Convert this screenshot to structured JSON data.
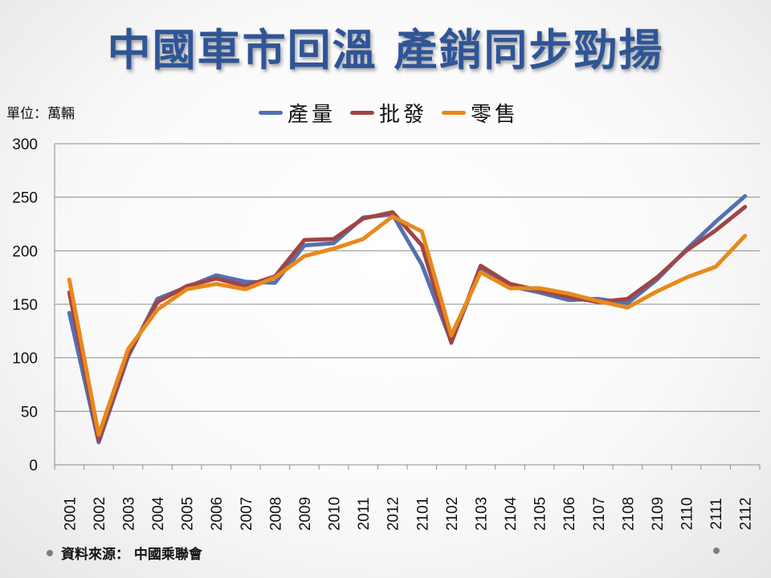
{
  "slide": {
    "title": "中國車市回溫 產銷同步勁揚",
    "unit_label": "單位：萬輛",
    "source_text": "資料來源： 中國乘聯會"
  },
  "chart_data": {
    "type": "line",
    "title": "",
    "xlabel": "",
    "ylabel": "",
    "ylim": [
      0,
      300
    ],
    "yticks": [
      0,
      50,
      100,
      150,
      200,
      250,
      300
    ],
    "grid": true,
    "legend_position": "top",
    "categories": [
      "2001",
      "2002",
      "2003",
      "2004",
      "2005",
      "2006",
      "2007",
      "2008",
      "2009",
      "2010",
      "2011",
      "2012",
      "2101",
      "2102",
      "2103",
      "2104",
      "2105",
      "2106",
      "2107",
      "2108",
      "2109",
      "2110",
      "2111",
      "2112"
    ],
    "series": [
      {
        "name": "產量",
        "color": "#5470b0",
        "values": [
          142,
          21,
          101,
          155,
          166,
          177,
          171,
          170,
          205,
          207,
          231,
          234,
          187,
          115,
          183,
          167,
          161,
          154,
          155,
          151,
          173,
          201,
          227,
          251
        ]
      },
      {
        "name": "批發",
        "color": "#a04545",
        "values": [
          161,
          23,
          103,
          152,
          167,
          174,
          167,
          176,
          210,
          211,
          230,
          236,
          205,
          114,
          186,
          169,
          163,
          157,
          152,
          155,
          175,
          200,
          219,
          241
        ]
      },
      {
        "name": "零售",
        "color": "#e8891c",
        "values": [
          173,
          28,
          108,
          145,
          164,
          169,
          164,
          175,
          195,
          202,
          211,
          232,
          218,
          121,
          180,
          165,
          165,
          160,
          153,
          147,
          162,
          175,
          185,
          214
        ]
      }
    ]
  }
}
